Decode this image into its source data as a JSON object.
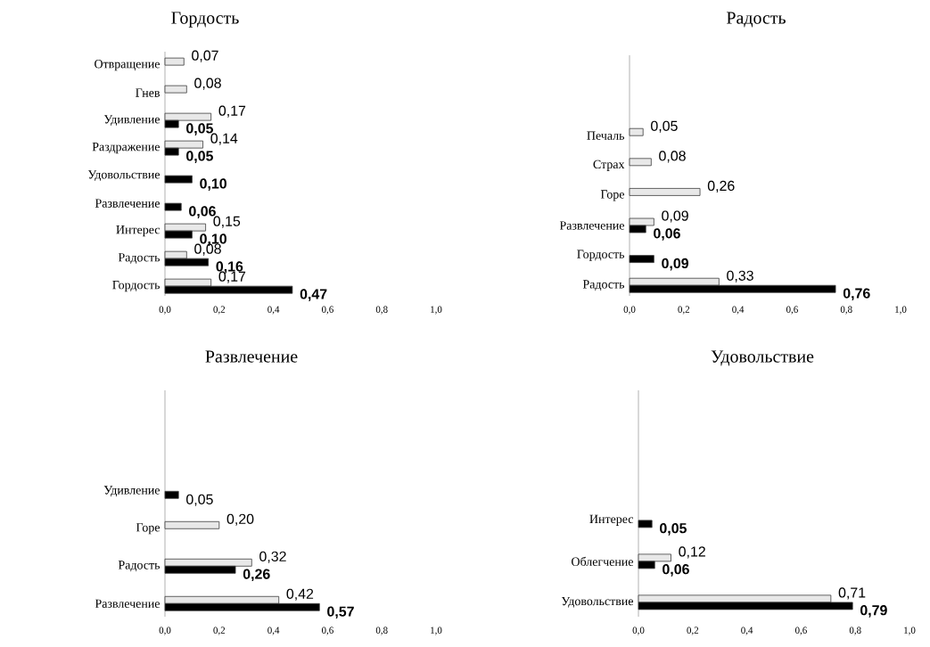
{
  "chart_data": [
    {
      "type": "bar",
      "orientation": "horizontal",
      "title": "Гордость",
      "categories": [
        "Отвращение",
        "Гнев",
        "Удивление",
        "Раздражение",
        "Удовольствие",
        "Развлечение",
        "Интерес",
        "Радость",
        "Гордость"
      ],
      "series": [
        {
          "color": "#e8e8e8",
          "values": [
            0.07,
            0.08,
            0.17,
            0.14,
            null,
            null,
            0.15,
            0.08,
            0.17
          ],
          "value_labels": [
            "0,07",
            "0,08",
            "0,17",
            "0,14",
            null,
            null,
            "0,15",
            "0,08",
            "0,17"
          ]
        },
        {
          "color": "#000000",
          "values": [
            null,
            null,
            0.05,
            0.05,
            0.1,
            0.06,
            0.1,
            0.16,
            0.47
          ],
          "value_labels": [
            null,
            null,
            "**0,05**",
            "**0,05**",
            "**0,10**",
            "**0,06**",
            "**0,10**",
            "**0,16**",
            "**0,47**"
          ]
        }
      ],
      "xlim": [
        0,
        1
      ],
      "xticks": [
        {
          "value": 0,
          "label": "0,0"
        },
        {
          "value": 0.2,
          "label": "0,2"
        },
        {
          "value": 0.4,
          "label": "0,4"
        },
        {
          "value": 0.6,
          "label": "0,6"
        },
        {
          "value": 0.8,
          "label": "0,8"
        },
        {
          "value": 1,
          "label": "1,0"
        }
      ]
    },
    {
      "type": "bar",
      "orientation": "horizontal",
      "title": "Радость",
      "categories": [
        "Печаль",
        "Страх",
        "Горе",
        "Развлечение",
        "Гордость",
        "Радость"
      ],
      "series": [
        {
          "color": "#e8e8e8",
          "values": [
            0.05,
            0.08,
            0.26,
            0.09,
            null,
            0.33
          ],
          "value_labels": [
            "0,05",
            "0,08",
            "0,26",
            "0,09",
            null,
            "0,33"
          ]
        },
        {
          "color": "#000000",
          "values": [
            null,
            null,
            null,
            0.06,
            0.09,
            0.76
          ],
          "value_labels": [
            null,
            null,
            null,
            "**0,06**",
            "**0,09**",
            "**0,76**"
          ]
        }
      ],
      "xlim": [
        0,
        1
      ],
      "xticks": [
        {
          "value": 0,
          "label": "0,0"
        },
        {
          "value": 0.2,
          "label": "0,2"
        },
        {
          "value": 0.4,
          "label": "0,4"
        },
        {
          "value": 0.6,
          "label": "0,6"
        },
        {
          "value": 0.8,
          "label": "0,8"
        },
        {
          "value": 1,
          "label": "1,0"
        }
      ]
    },
    {
      "type": "bar",
      "orientation": "horizontal",
      "title": "Развлечение",
      "categories": [
        "Удивление",
        "Горе",
        "Радость",
        "Развлечение"
      ],
      "series": [
        {
          "color": "#e8e8e8",
          "values": [
            null,
            0.2,
            0.32,
            0.42
          ],
          "value_labels": [
            null,
            "0,20",
            "0,32",
            "0,42"
          ]
        },
        {
          "color": "#000000",
          "values": [
            0.05,
            null,
            0.26,
            0.57
          ],
          "value_labels": [
            "0,05",
            null,
            "**0,26**",
            "**0,57**"
          ]
        }
      ],
      "xlim": [
        0,
        1
      ],
      "xticks": [
        {
          "value": 0,
          "label": "0,0"
        },
        {
          "value": 0.2,
          "label": "0,2"
        },
        {
          "value": 0.4,
          "label": "0,4"
        },
        {
          "value": 0.6,
          "label": "0,6"
        },
        {
          "value": 0.8,
          "label": "0,8"
        },
        {
          "value": 1,
          "label": "1,0"
        }
      ]
    },
    {
      "type": "bar",
      "orientation": "horizontal",
      "title": "Удовольствие",
      "categories": [
        "Интерес",
        "Облегчение",
        "Удовольствие"
      ],
      "series": [
        {
          "color": "#e8e8e8",
          "values": [
            null,
            0.12,
            0.71
          ],
          "value_labels": [
            null,
            "0,12",
            "0,71"
          ]
        },
        {
          "color": "#000000",
          "values": [
            0.05,
            0.06,
            0.79
          ],
          "value_labels": [
            "**0,05**",
            "**0,06**",
            "**0,79**"
          ]
        }
      ],
      "xlim": [
        0,
        1
      ],
      "xticks": [
        {
          "value": 0,
          "label": "0,0"
        },
        {
          "value": 0.2,
          "label": "0,2"
        },
        {
          "value": 0.4,
          "label": "0,4"
        },
        {
          "value": 0.6,
          "label": "0,6"
        },
        {
          "value": 0.8,
          "label": "0,8"
        },
        {
          "value": 1,
          "label": "1,0"
        }
      ]
    }
  ]
}
